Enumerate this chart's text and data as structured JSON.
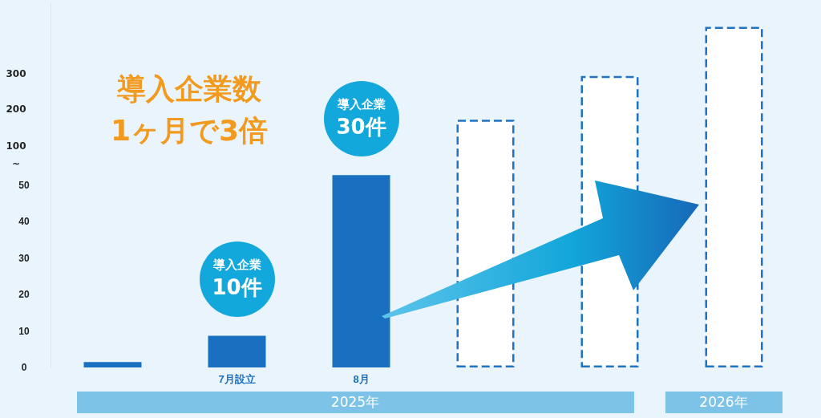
{
  "chart_data": {
    "type": "bar",
    "categories": [
      null,
      "7月設立",
      "8月",
      null,
      null,
      null
    ],
    "series": [
      {
        "color": "#1a70c0",
        "values": [
          1.5,
          8.7,
          52.8,
          null,
          null,
          null
        ]
      },
      {
        "color": "#1f73c2",
        "line_style": "dashed",
        "values": [
          null,
          null,
          null,
          68,
          80,
          93.5
        ]
      }
    ],
    "ylim": [
      0,
      100
    ],
    "yticks": [
      0,
      10,
      20,
      30,
      40,
      50
    ],
    "grid": false,
    "annotations": [
      "導入企業数\n1ヶ月で3倍",
      "導入企業\n10件",
      "導入企業\n30件",
      "2025年",
      "2026年",
      "~",
      "100",
      "200",
      "300"
    ]
  }
}
